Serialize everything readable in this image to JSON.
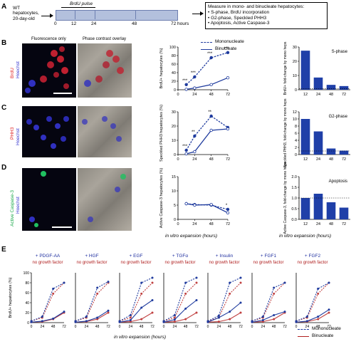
{
  "panelA": {
    "letter": "A",
    "subject_line1": "WT",
    "subject_line2": "hepatocytes,",
    "subject_line3": "20-day-old",
    "pulse_label": "BrdU pulse",
    "time_ticks": [
      "0",
      "12",
      "24",
      "48",
      "72 hours"
    ],
    "box_title": "Measure in mono- and binucleate hepatocytes:",
    "box_items": [
      "• S-phase, BrdU incorporation",
      "• G2-phase, Speckled PHH3",
      "• Apoptosis, Active Caspase-3"
    ]
  },
  "image_headers": {
    "fluorescence": "Fluorescence only",
    "phase": "Phase contrast overlay"
  },
  "rows": [
    {
      "letter": "B",
      "stain": "BrdU",
      "counterstain": "Hoechst",
      "stain_color": "#e02020",
      "ylabel": "BrdU+ hepatocytes (%)",
      "fold_label": "BrdU+ fold-change by mono heps",
      "phase_title": "S-phase"
    },
    {
      "letter": "C",
      "stain": "PHH3",
      "counterstain": "Hoechst",
      "stain_color": "#e02020",
      "ylabel": "Speckled PHH3 hepatocytes (%)",
      "fold_label": "Speckled PHH3, fold-change by mono heps",
      "phase_title": "G2-phase"
    },
    {
      "letter": "D",
      "stain": "Active Caspase-3",
      "counterstain": "Hoechst",
      "stain_color": "#1aa84a",
      "ylabel": "Active Caspase-3 hepatocytes (%)",
      "fold_label": "Active Caspase-3, fold-change by mono heps",
      "phase_title": "Apoptosis"
    }
  ],
  "legend": {
    "mono": "Mononucleate",
    "bi": "Binucleate"
  },
  "colors": {
    "mono": "#1f3b9e",
    "bi": "#1f3b9e",
    "bar": "#1f3fa8",
    "panelE_bi": "#b02020"
  },
  "xlabel_expansion": "in vitro expansion (hours)",
  "panelE": {
    "letter": "E",
    "ylabel": "BrdU+ hepatocytes (%)",
    "xlabel": "in vitro expansion (hours)",
    "legend_mono": "Mononucleate",
    "legend_bi": "Binucleate",
    "no_gf": "no growth factor"
  },
  "chart_data": [
    {
      "type": "line",
      "id": "B-line",
      "x": [
        12,
        24,
        48,
        72
      ],
      "xticks": [
        "0",
        "24",
        "48",
        "72"
      ],
      "ylim": [
        0,
        100
      ],
      "yticks": [
        "0",
        "20",
        "40",
        "60",
        "80",
        "100"
      ],
      "series": [
        {
          "name": "Mononucleate",
          "values": [
            12,
            30,
            75,
            87
          ]
        },
        {
          "name": "Binucleate",
          "values": [
            1,
            4,
            12,
            28
          ]
        }
      ],
      "stars": [
        "***",
        "***",
        "***",
        "***"
      ]
    },
    {
      "type": "line",
      "id": "C-line",
      "x": [
        12,
        24,
        48,
        72
      ],
      "xticks": [
        "0",
        "24",
        "48",
        "72"
      ],
      "ylim": [
        0,
        30
      ],
      "yticks": [
        "0",
        "10",
        "20",
        "30"
      ],
      "series": [
        {
          "name": "Mononucleate",
          "values": [
            3,
            13,
            27,
            19
          ]
        },
        {
          "name": "Binucleate",
          "values": [
            0.5,
            2,
            17,
            18
          ]
        }
      ],
      "stars": [
        "***",
        "**",
        "**",
        ""
      ]
    },
    {
      "type": "line",
      "id": "D-line",
      "x": [
        12,
        24,
        48,
        72
      ],
      "xticks": [
        "0",
        "24",
        "48",
        "72"
      ],
      "ylim": [
        0,
        15
      ],
      "yticks": [
        "0",
        "5",
        "10",
        "15"
      ],
      "series": [
        {
          "name": "Mononucleate",
          "values": [
            5.5,
            5.2,
            5,
            3.5
          ]
        },
        {
          "name": "Binucleate",
          "values": [
            5.5,
            5,
            5.2,
            2.3
          ]
        }
      ],
      "stars": [
        "",
        "",
        "",
        "*"
      ]
    },
    {
      "type": "bar",
      "id": "B-bar",
      "categories": [
        "12",
        "24",
        "48",
        "72"
      ],
      "values": [
        32,
        10,
        4,
        3
      ],
      "ylim": [
        0,
        35
      ],
      "yticks": [
        "0",
        "10",
        "20",
        "30"
      ]
    },
    {
      "type": "bar",
      "id": "C-bar",
      "categories": [
        "12",
        "24",
        "48",
        "72"
      ],
      "values": [
        10,
        6.5,
        1.7,
        1.1
      ],
      "ylim": [
        0,
        12
      ],
      "yticks": [
        "0",
        "2",
        "4",
        "6",
        "8",
        "10",
        "12"
      ]
    },
    {
      "type": "bar",
      "id": "D-bar",
      "categories": [
        "12",
        "24",
        "48",
        "72"
      ],
      "values": [
        1.0,
        1.2,
        0.8,
        0.55
      ],
      "ylim": [
        0,
        2
      ],
      "yticks": [
        "0.0",
        "0.5",
        "1.0",
        "1.5",
        "2.0"
      ]
    },
    {
      "type": "line",
      "id": "E-mini",
      "xticks": [
        "0",
        "24",
        "48",
        "72"
      ],
      "yticks": [
        "0",
        "20",
        "40",
        "60",
        "80",
        "100"
      ],
      "ylim": [
        0,
        100
      ],
      "panels": [
        {
          "title": "+ PDGF-AA",
          "mono": [
            3,
            12,
            68,
            80
          ],
          "bi": [
            1,
            3,
            8,
            22
          ],
          "mono_nogf": [
            3,
            10,
            58,
            80
          ],
          "bi_nogf": [
            1,
            2,
            7,
            20
          ]
        },
        {
          "title": "+ HGF",
          "mono": [
            3,
            12,
            70,
            82
          ],
          "bi": [
            1,
            3,
            10,
            24
          ],
          "mono_nogf": [
            3,
            10,
            58,
            80
          ],
          "bi_nogf": [
            1,
            2,
            7,
            20
          ]
        },
        {
          "title": "+ EGF",
          "mono": [
            3,
            15,
            80,
            90
          ],
          "bi": [
            1,
            5,
            30,
            45
          ],
          "mono_nogf": [
            3,
            10,
            58,
            80
          ],
          "bi_nogf": [
            1,
            2,
            7,
            20
          ]
        },
        {
          "title": "+ TGFα",
          "mono": [
            3,
            15,
            80,
            90
          ],
          "bi": [
            1,
            6,
            28,
            45
          ],
          "mono_nogf": [
            3,
            10,
            58,
            80
          ],
          "bi_nogf": [
            1,
            2,
            7,
            20
          ]
        },
        {
          "title": "+ Insulin",
          "mono": [
            3,
            14,
            80,
            90
          ],
          "bi": [
            1,
            10,
            22,
            40
          ],
          "mono_nogf": [
            3,
            10,
            58,
            80
          ],
          "bi_nogf": [
            1,
            2,
            7,
            20
          ]
        },
        {
          "title": "+ FGF1",
          "mono": [
            3,
            12,
            70,
            80
          ],
          "bi": [
            1,
            5,
            15,
            22
          ],
          "mono_nogf": [
            3,
            10,
            58,
            80
          ],
          "bi_nogf": [
            1,
            2,
            7,
            20
          ]
        },
        {
          "title": "+ FGF2",
          "mono": [
            3,
            12,
            68,
            80
          ],
          "bi": [
            1,
            3,
            12,
            26
          ],
          "mono_nogf": [
            3,
            10,
            58,
            80
          ],
          "bi_nogf": [
            1,
            2,
            7,
            20
          ]
        }
      ]
    }
  ]
}
